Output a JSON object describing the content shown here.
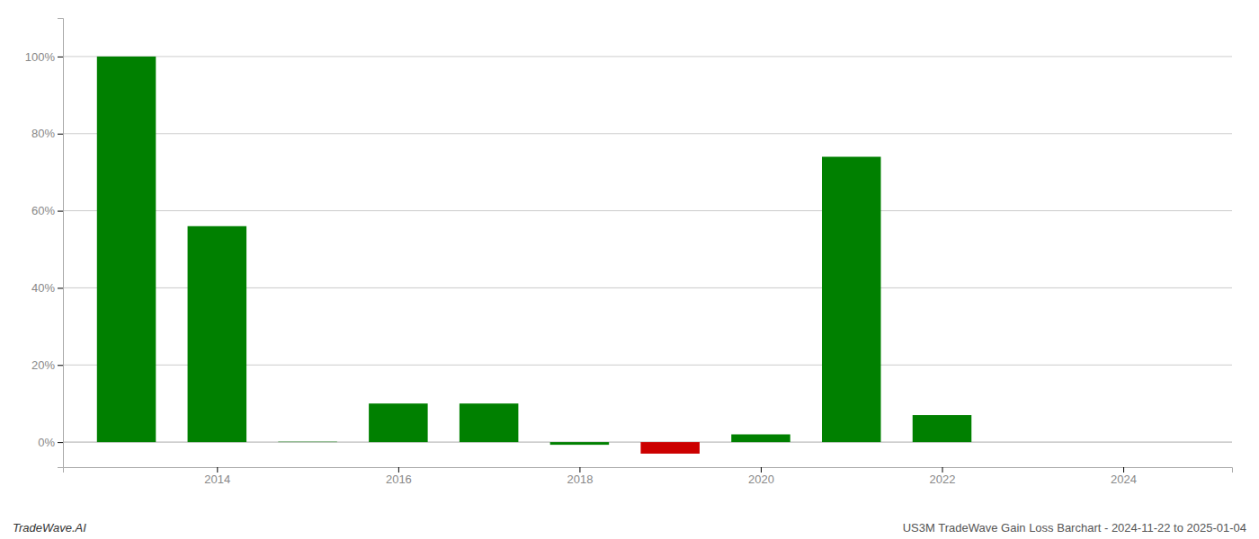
{
  "chart_data": {
    "type": "bar",
    "x": [
      2013,
      2014,
      2015,
      2016,
      2017,
      2018,
      2019,
      2020,
      2021,
      2022,
      2023,
      2024
    ],
    "values": [
      1.0,
      0.56,
      0.001,
      0.1,
      0.1,
      -0.007,
      -0.03,
      0.02,
      0.74,
      0.07,
      0.0,
      0.0
    ],
    "colors": [
      "#008000",
      "#008000",
      "#008000",
      "#008000",
      "#008000",
      "#008000",
      "#cc0000",
      "#008000",
      "#008000",
      "#008000",
      "#008000",
      "#008000"
    ],
    "xlim": [
      2012.3,
      2025.2
    ],
    "xticks": [
      2014,
      2016,
      2018,
      2020,
      2022,
      2024
    ],
    "ylim": [
      -0.065,
      1.1
    ],
    "yticks": [
      {
        "value": 0.0,
        "label": "0%"
      },
      {
        "value": 0.2,
        "label": "20%"
      },
      {
        "value": 0.4,
        "label": "40%"
      },
      {
        "value": 0.6,
        "label": "60%"
      },
      {
        "value": 0.8,
        "label": "80%"
      },
      {
        "value": 1.0,
        "label": "100%"
      }
    ],
    "grid": true,
    "annotations": [
      "TradeWave.AI",
      "US3M TradeWave Gain Loss Barchart - 2024-11-22 to 2025-01-04"
    ]
  }
}
